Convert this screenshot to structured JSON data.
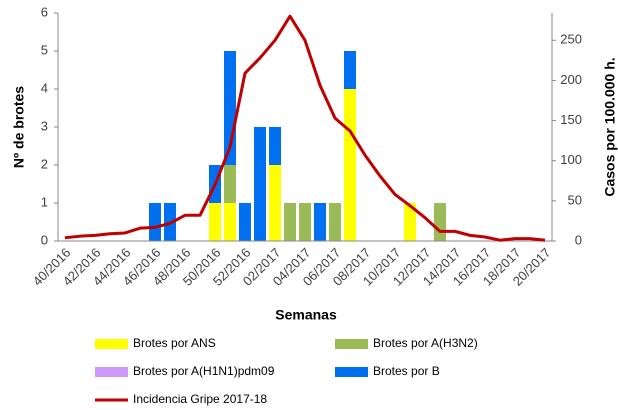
{
  "chart_data": {
    "type": "bar",
    "stacked": true,
    "x_label": "Semanas",
    "y_label": "Nº de brotes",
    "y2_label": "Casos por 100.000 h.",
    "categories": [
      "40/2016",
      null,
      "42/2016",
      null,
      "44/2016",
      null,
      "46/2016",
      null,
      "48/2016",
      null,
      "50/2016",
      null,
      "52/2016",
      null,
      "02/2017",
      null,
      "04/2017",
      null,
      "06/2017",
      null,
      "08/2017",
      null,
      "10/2017",
      null,
      "12/2017",
      null,
      "14/2017",
      null,
      "16/2017",
      null,
      "18/2017",
      null,
      "20/2017"
    ],
    "ylim": [
      0,
      6
    ],
    "yticks": [
      0,
      1,
      2,
      3,
      4,
      5,
      6
    ],
    "y2lim": [
      0,
      284
    ],
    "y2ticks": [
      0,
      50,
      100,
      150,
      200,
      250
    ],
    "series": [
      {
        "name": "Brotes por ANS",
        "color": "#ffff00",
        "values": [
          0,
          0,
          0,
          0,
          0,
          0,
          0,
          0,
          0,
          0,
          1,
          1,
          0,
          0,
          2,
          0,
          0,
          0,
          0,
          4,
          0,
          0,
          0,
          1,
          0,
          0,
          0,
          0,
          0,
          0,
          0,
          0,
          0
        ]
      },
      {
        "name": "Brotes por A(H3N2)",
        "color": "#9bbb59",
        "values": [
          0,
          0,
          0,
          0,
          0,
          0,
          0,
          0,
          0,
          0,
          0,
          1,
          0,
          0,
          0,
          1,
          1,
          0,
          1,
          0,
          0,
          0,
          0,
          0,
          0,
          1,
          0,
          0,
          0,
          0,
          0,
          0,
          0
        ]
      },
      {
        "name": "Brotes por A(H1N1)pdm09",
        "color": "#cc99ff",
        "values": [
          0,
          0,
          0,
          0,
          0,
          0,
          0,
          0,
          0,
          0,
          0,
          0,
          0,
          0,
          0,
          0,
          0,
          0,
          0,
          0,
          0,
          0,
          0,
          0,
          0,
          0,
          0,
          0,
          0,
          0,
          0,
          0,
          0
        ]
      },
      {
        "name": "Brotes por B",
        "color": "#0070f0",
        "values": [
          0,
          0,
          0,
          0,
          0,
          0,
          1,
          1,
          0,
          0,
          1,
          3,
          1,
          3,
          1,
          0,
          0,
          1,
          0,
          1,
          0,
          0,
          0,
          0,
          0,
          0,
          0,
          0,
          0,
          0,
          0,
          0,
          0
        ]
      },
      {
        "name": "Incidencia Gripe 2017-18",
        "color": "#c00000",
        "type": "line",
        "axis": "y2",
        "values": [
          4,
          6,
          7,
          9,
          10,
          16,
          17,
          22,
          32,
          32,
          70,
          117,
          209,
          228,
          250,
          280,
          250,
          194,
          153,
          137,
          107,
          81,
          58,
          44,
          29,
          12,
          12,
          7,
          5,
          1,
          3,
          3,
          1
        ]
      }
    ]
  }
}
